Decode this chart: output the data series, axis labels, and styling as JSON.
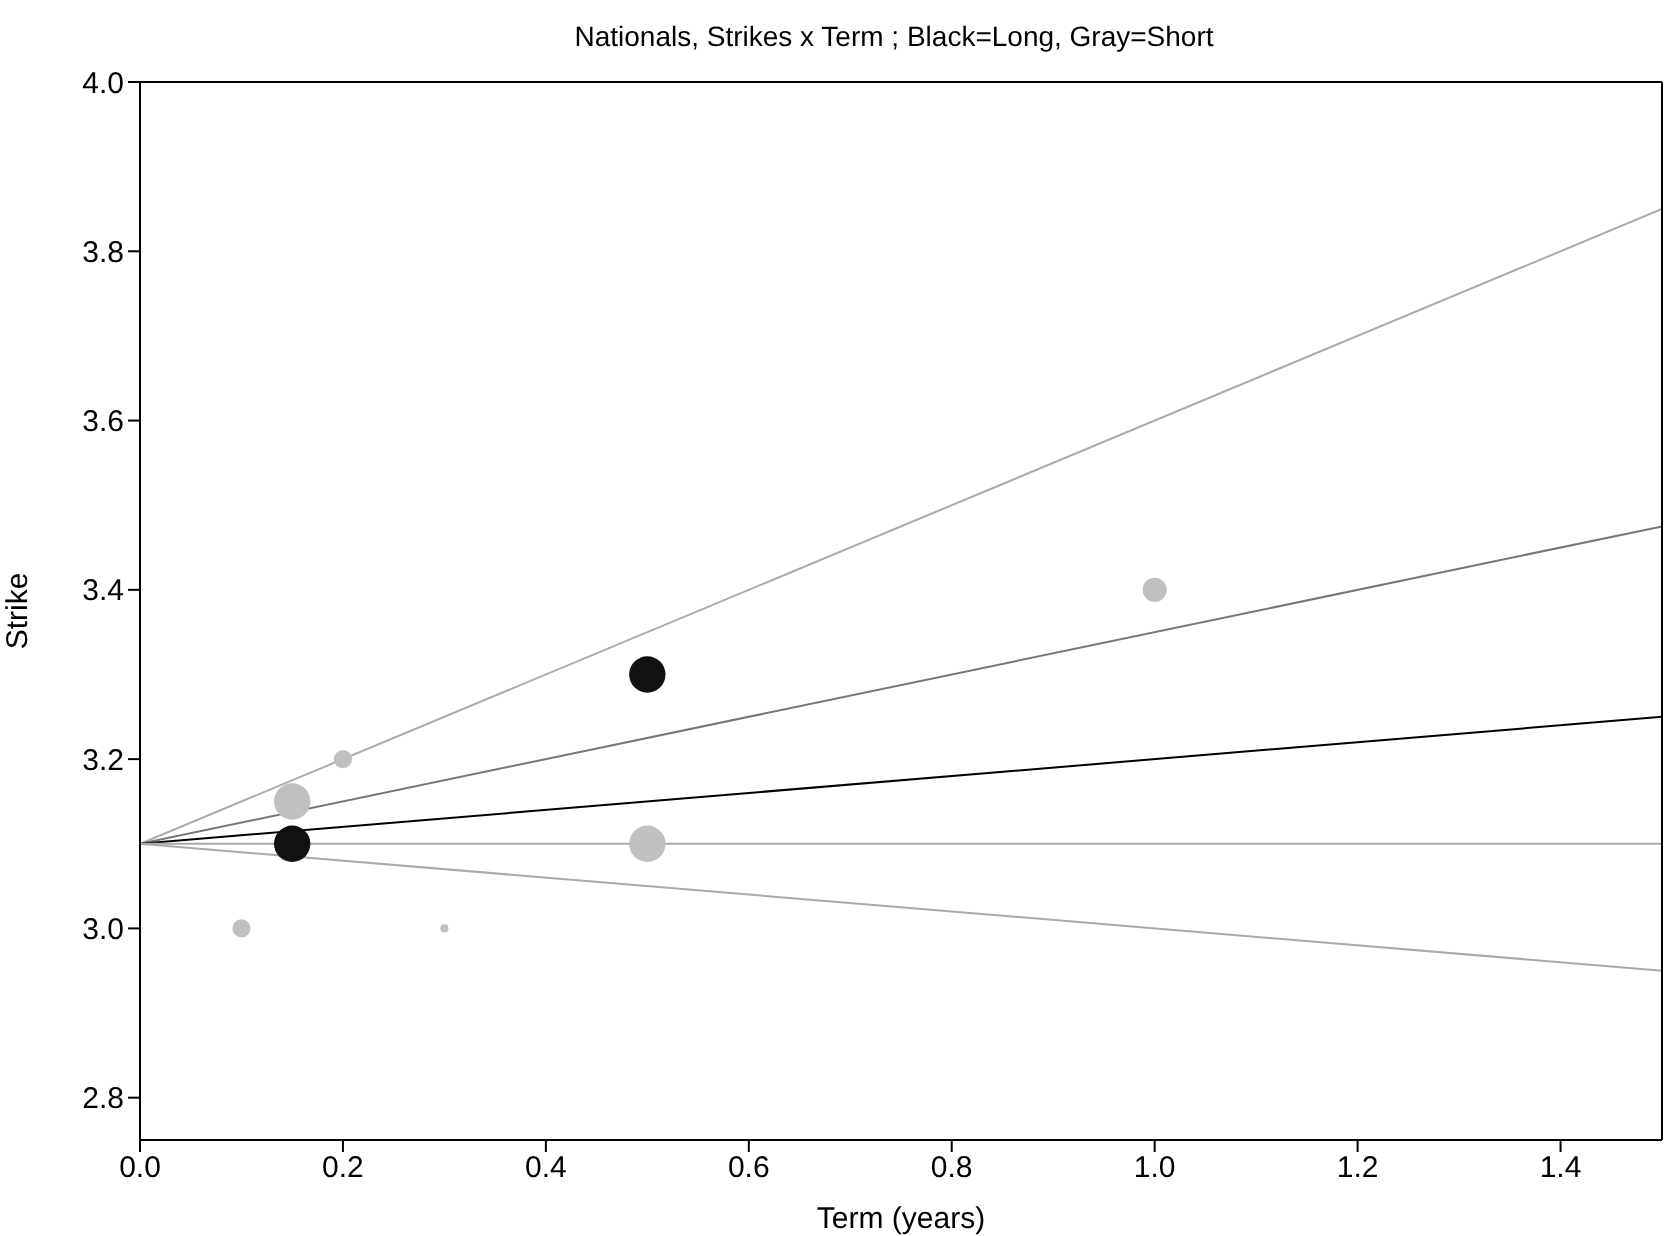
{
  "chart_data": {
    "type": "bubble",
    "title": "Nationals, Strikes x Term ; Black=Long, Gray=Short",
    "xlabel": "Term (years)",
    "ylabel": "Strike",
    "xlim": [
      0,
      1.5
    ],
    "ylim": [
      2.75,
      4.0
    ],
    "xticks": [
      {
        "value": 0,
        "label": "0.0"
      },
      {
        "value": 0.2,
        "label": "0.2"
      },
      {
        "value": 0.4,
        "label": "0.4"
      },
      {
        "value": 0.6,
        "label": "0.6"
      },
      {
        "value": 0.8,
        "label": "0.8"
      },
      {
        "value": 1.0,
        "label": "1.0"
      },
      {
        "value": 1.2,
        "label": "1.2"
      },
      {
        "value": 1.4,
        "label": "1.4"
      }
    ],
    "yticks": [
      {
        "value": 2.8,
        "label": "2.8"
      },
      {
        "value": 3.0,
        "label": "3.0"
      },
      {
        "value": 3.2,
        "label": "3.2"
      },
      {
        "value": 3.4,
        "label": "3.4"
      },
      {
        "value": 3.6,
        "label": "3.6"
      },
      {
        "value": 3.8,
        "label": "3.8"
      },
      {
        "value": 4.0,
        "label": "4.0"
      }
    ],
    "series": [
      {
        "type": "line",
        "color": "#aaaaaa",
        "x": [
          0,
          1.5
        ],
        "values": [
          3.1,
          3.85
        ]
      },
      {
        "type": "line",
        "color": "#777777",
        "x": [
          0,
          1.5
        ],
        "values": [
          3.1,
          3.475
        ]
      },
      {
        "type": "line",
        "color": "#000000",
        "x": [
          0,
          1.5
        ],
        "values": [
          3.1,
          3.25
        ]
      },
      {
        "type": "line",
        "color": "#aaaaaa",
        "x": [
          0,
          1.5
        ],
        "values": [
          3.1,
          3.1
        ]
      },
      {
        "type": "line",
        "color": "#aaaaaa",
        "x": [
          0,
          1.5
        ],
        "values": [
          3.1,
          2.95
        ]
      },
      {
        "color": "#c0c0c0",
        "x": [
          0.1,
          0.15,
          0.2,
          0.3,
          0.5,
          1.0
        ],
        "values": [
          3.0,
          3.15,
          3.2,
          3.0,
          3.1,
          3.4
        ],
        "sizes": [
          0.25,
          1,
          0.25,
          0.05,
          1,
          0.44
        ]
      },
      {
        "color": "#111111",
        "x": [
          0.15,
          0.5
        ],
        "values": [
          3.1,
          3.3
        ],
        "sizes": [
          1,
          1
        ]
      }
    ]
  }
}
